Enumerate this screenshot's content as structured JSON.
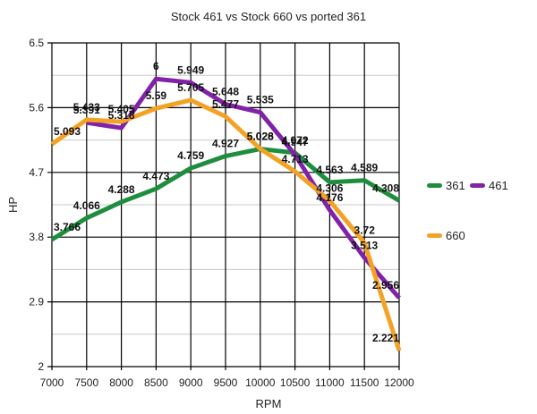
{
  "chart_data": {
    "type": "line",
    "title": "Stock 461 vs Stock 660 vs ported 361",
    "xlabel": "RPM",
    "ylabel": "HP",
    "x": [
      7000,
      7500,
      8000,
      8500,
      9000,
      9500,
      10000,
      10500,
      11000,
      11500,
      12000
    ],
    "ylim": [
      2,
      6.5
    ],
    "yticks": [
      2,
      2.9,
      3.8,
      4.7,
      5.6,
      6.5
    ],
    "ytick_labels": [
      "2",
      "2.9",
      "3.8",
      "4.7",
      "5.6",
      "6.5"
    ],
    "xtick_labels": [
      "7000",
      "7500",
      "8000",
      "8500",
      "9000",
      "9500",
      "10000",
      "10500",
      "11000",
      "11500",
      "12000"
    ],
    "grid": true,
    "legend_position": "right",
    "series": [
      {
        "name": "361",
        "color": "#1e8e3e",
        "values": [
          3.766,
          4.066,
          4.288,
          4.473,
          4.759,
          4.927,
          5.026,
          4.972,
          4.563,
          4.589,
          4.308
        ],
        "labels": [
          "3.766",
          "4.066",
          "4.288",
          "4.473",
          "4.759",
          "4.927",
          "5.026",
          "4.972",
          "4.563",
          "4.589",
          "4.308"
        ]
      },
      {
        "name": "461",
        "color": "#8122a8",
        "values": [
          null,
          5.391,
          5.318,
          6,
          5.949,
          5.648,
          5.535,
          4.947,
          4.176,
          3.513,
          2.956
        ],
        "labels": [
          null,
          "5.391",
          "5.318",
          "6",
          "5.949",
          "5.648",
          "5.535",
          "4.947",
          "4.176",
          "3.513",
          "2.956"
        ]
      },
      {
        "name": "660",
        "color": "#f4a225",
        "values": [
          5.093,
          5.433,
          5.405,
          5.59,
          5.705,
          5.477,
          5.028,
          4.713,
          4.306,
          3.72,
          2.221
        ],
        "labels": [
          "5.093",
          "5.433",
          "5.405",
          "5.59",
          "5.705",
          "5.477",
          "5.028",
          "4.713",
          "4.306",
          "3.72",
          "2.221"
        ]
      }
    ]
  },
  "legend": {
    "items": [
      {
        "label": "361",
        "color": "#1e8e3e"
      },
      {
        "label": "461",
        "color": "#8122a8"
      },
      {
        "label": "660",
        "color": "#f4a225"
      }
    ]
  }
}
